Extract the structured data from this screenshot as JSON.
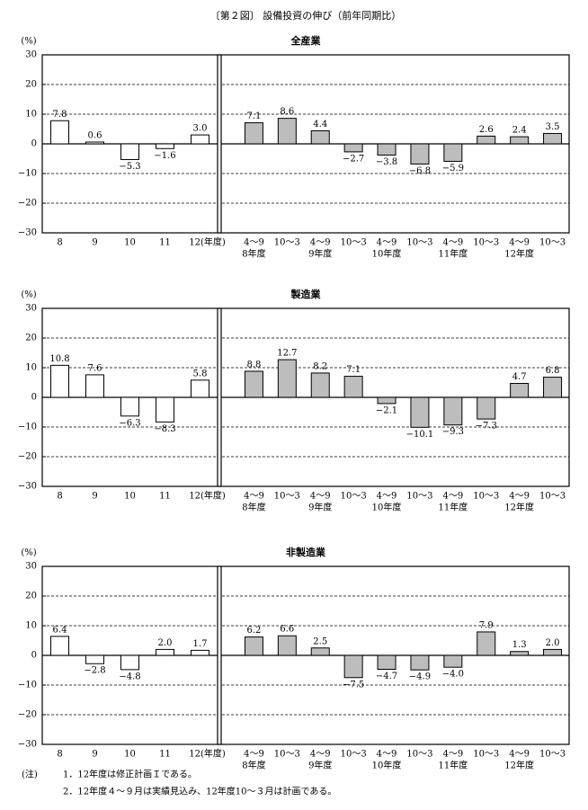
{
  "title": "〔第２図〕 設備投資の伸び（前年同期比）",
  "chart_data": [
    {
      "type": "bar",
      "title": "全産業",
      "y_label": "(%)",
      "ylim": [
        -30,
        30
      ],
      "yticks": [
        30,
        20,
        10,
        0,
        {
          "value": -10,
          "label": "−10"
        },
        {
          "value": -20,
          "label": "−20"
        },
        {
          "value": -30,
          "label": "−30"
        }
      ],
      "grid": "dashed",
      "annual": {
        "categories": [
          "8",
          "9",
          "10",
          "11",
          "12(年度)"
        ],
        "values": [
          7.8,
          0.6,
          -5.3,
          -1.6,
          3.0
        ],
        "value_labels": [
          "7.8",
          "0.6",
          "−5.3",
          "−1.6",
          "3.0"
        ],
        "color": "#ffffff"
      },
      "half_year": {
        "categories": [
          "4〜9",
          "10〜3",
          "4〜9",
          "10〜3",
          "4〜9",
          "10〜3",
          "4〜9",
          "10〜3",
          "4〜9",
          "10〜3"
        ],
        "groups": [
          "8年度",
          "9年度",
          "10年度",
          "11年度",
          "12年度"
        ],
        "values": [
          7.1,
          8.6,
          4.4,
          -2.7,
          -3.8,
          -6.8,
          -5.9,
          2.6,
          2.4,
          3.5
        ],
        "value_labels": [
          "7.1",
          "8.6",
          "4.4",
          "−2.7",
          "−3.8",
          "−6.8",
          "−5.9",
          "2.6",
          "2.4",
          "3.5"
        ],
        "color": "#bdbdbd"
      }
    },
    {
      "type": "bar",
      "title": "製造業",
      "y_label": "(%)",
      "ylim": [
        -30,
        30
      ],
      "yticks": [
        30,
        20,
        10,
        0,
        {
          "value": -10,
          "label": "−10"
        },
        {
          "value": -20,
          "label": "−20"
        },
        {
          "value": -30,
          "label": "−30"
        }
      ],
      "grid": "dashed",
      "annual": {
        "categories": [
          "8",
          "9",
          "10",
          "11",
          "12(年度)"
        ],
        "values": [
          10.8,
          7.6,
          -6.3,
          -8.3,
          5.8
        ],
        "value_labels": [
          "10.8",
          "7.6",
          "−6.3",
          "−8.3",
          "5.8"
        ],
        "color": "#ffffff"
      },
      "half_year": {
        "categories": [
          "4〜9",
          "10〜3",
          "4〜9",
          "10〜3",
          "4〜9",
          "10〜3",
          "4〜9",
          "10〜3",
          "4〜9",
          "10〜3"
        ],
        "groups": [
          "8年度",
          "9年度",
          "10年度",
          "11年度",
          "12年度"
        ],
        "values": [
          8.8,
          12.7,
          8.2,
          7.1,
          -2.1,
          -10.1,
          -9.3,
          -7.3,
          4.7,
          6.8
        ],
        "value_labels": [
          "8.8",
          "12.7",
          "8.2",
          "7.1",
          "−2.1",
          "−10.1",
          "−9.3",
          "−7.3",
          "4.7",
          "6.8"
        ],
        "color": "#bdbdbd"
      }
    },
    {
      "type": "bar",
      "title": "非製造業",
      "y_label": "(%)",
      "ylim": [
        -30,
        30
      ],
      "yticks": [
        30,
        20,
        10,
        0,
        {
          "value": -10,
          "label": "−10"
        },
        {
          "value": -20,
          "label": "−20"
        },
        {
          "value": -30,
          "label": "−30"
        }
      ],
      "grid": "dashed",
      "annual": {
        "categories": [
          "8",
          "9",
          "10",
          "11",
          "12(年度)"
        ],
        "values": [
          6.4,
          -2.8,
          -4.8,
          2.0,
          1.7
        ],
        "value_labels": [
          "6.4",
          "−2.8",
          "−4.8",
          "2.0",
          "1.7"
        ],
        "color": "#ffffff"
      },
      "half_year": {
        "categories": [
          "4〜9",
          "10〜3",
          "4〜9",
          "10〜3",
          "4〜9",
          "10〜3",
          "4〜9",
          "10〜3",
          "4〜9",
          "10〜3"
        ],
        "groups": [
          "8年度",
          "9年度",
          "10年度",
          "11年度",
          "12年度"
        ],
        "values": [
          6.2,
          6.6,
          2.5,
          -7.5,
          -4.7,
          -4.9,
          -4.0,
          7.9,
          1.3,
          2.0
        ],
        "value_labels": [
          "6.2",
          "6.6",
          "2.5",
          "−7.5",
          "−4.7",
          "−4.9",
          "−4.0",
          "7.9",
          "1.3",
          "2.0"
        ],
        "color": "#bdbdbd"
      }
    }
  ],
  "notes": {
    "label": "(注)",
    "items": [
      "1．12年度は修正計画Ｉである。",
      "2．12年度４〜９月は実績見込み、12年度10〜３月は計画である。"
    ]
  }
}
